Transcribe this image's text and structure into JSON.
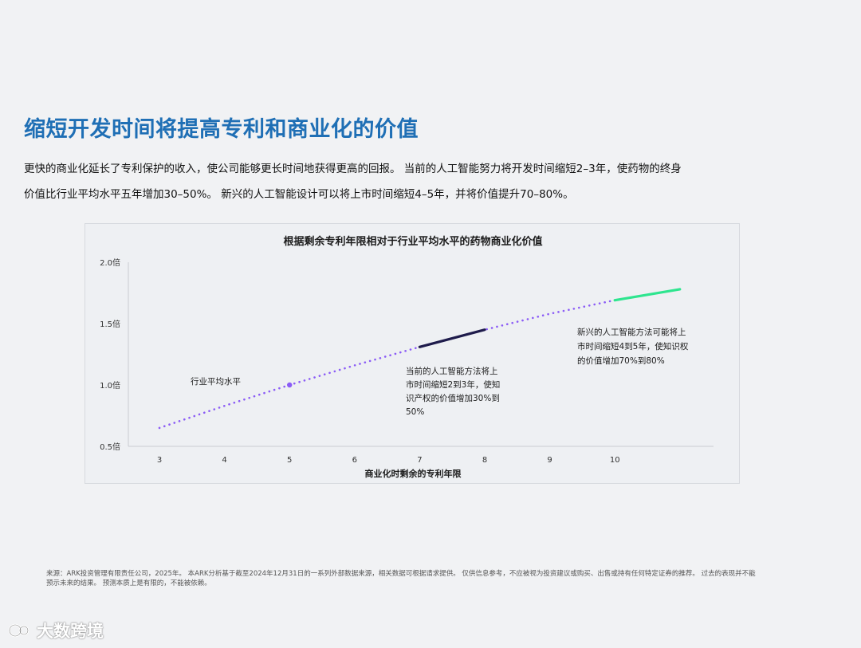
{
  "header": {
    "title": "缩短开发时间将提高专利和商业化的价值",
    "intro_line1": "更快的商业化延长了专利保护的收入，使公司能够更长时间地获得更高的回报。 当前的人工智能努力将开发时间缩短2–3年，使药物的终身",
    "intro_line2": "价值比行业平均水平五年增加30–50%。 新兴的人工智能设计可以将上市时间缩短4–5年，并将价值提升70–80%。"
  },
  "chart_data": {
    "type": "line",
    "title": "根据剩余专利年限相对于行业平均水平的药物商业化价值",
    "xlabel": "商业化时剩余的专利年限",
    "ylabel": "",
    "xlim": [
      2.5,
      11.5
    ],
    "ylim": [
      0.5,
      2.0
    ],
    "x_ticks": [
      "3",
      "4",
      "5",
      "6",
      "7",
      "8",
      "9",
      "10"
    ],
    "y_ticks": [
      {
        "value": 2.0,
        "label": "2.0倍"
      },
      {
        "value": 1.5,
        "label": "1.5倍"
      },
      {
        "value": 1.0,
        "label": "1.0倍"
      },
      {
        "value": 0.5,
        "label": "0.5倍"
      }
    ],
    "series": [
      {
        "x": [
          3,
          4,
          5,
          6,
          7,
          8,
          9,
          10,
          11
        ],
        "y": [
          0.65,
          0.83,
          1.0,
          1.16,
          1.31,
          1.45,
          1.58,
          1.69,
          1.78
        ]
      }
    ],
    "segments": [
      {
        "x0": 3,
        "x1": 10,
        "style": "dotted",
        "color": "#8b5cf6"
      },
      {
        "x0": 7,
        "x1": 8,
        "style": "solid",
        "color": "#1e1b4b"
      },
      {
        "x0": 10,
        "x1": 11,
        "style": "solid",
        "color": "#2ee58f"
      }
    ],
    "marker": {
      "x": 5,
      "y": 1.0,
      "color": "#8b5cf6"
    },
    "annotations": [
      {
        "id": "industry",
        "lines": [
          "行业平均水平"
        ]
      },
      {
        "id": "current",
        "lines": [
          "当前的人工智能方法将上",
          "市时间缩短2到3年，使知",
          "识产权的价值增加30%到",
          "50%"
        ]
      },
      {
        "id": "emerging",
        "lines": [
          "新兴的人工智能方法可能将上",
          "市时间缩短4到5年，使知识权",
          "的价值增加70%到80%"
        ]
      }
    ],
    "grid": false
  },
  "footer": {
    "source_line1": "来源：ARK投资管理有限责任公司，2025年。 本ARK分析基于截至2024年12月31日的一系列外部数据来源，相关数据可根据请求提供。 仅供信息参考，不应被视为投资建议或购买、出售或持有任何特定证券的推荐。 过去的表现并不能",
    "source_line2": "预示未来的结果。 预测本质上是有限的，不能被依赖。",
    "watermark_text": "大数跨境"
  },
  "colors": {
    "title": "#1f6fb5",
    "dotted_line": "#8b5cf6",
    "current_segment": "#1e1b4b",
    "emerging_segment": "#2ee58f"
  }
}
